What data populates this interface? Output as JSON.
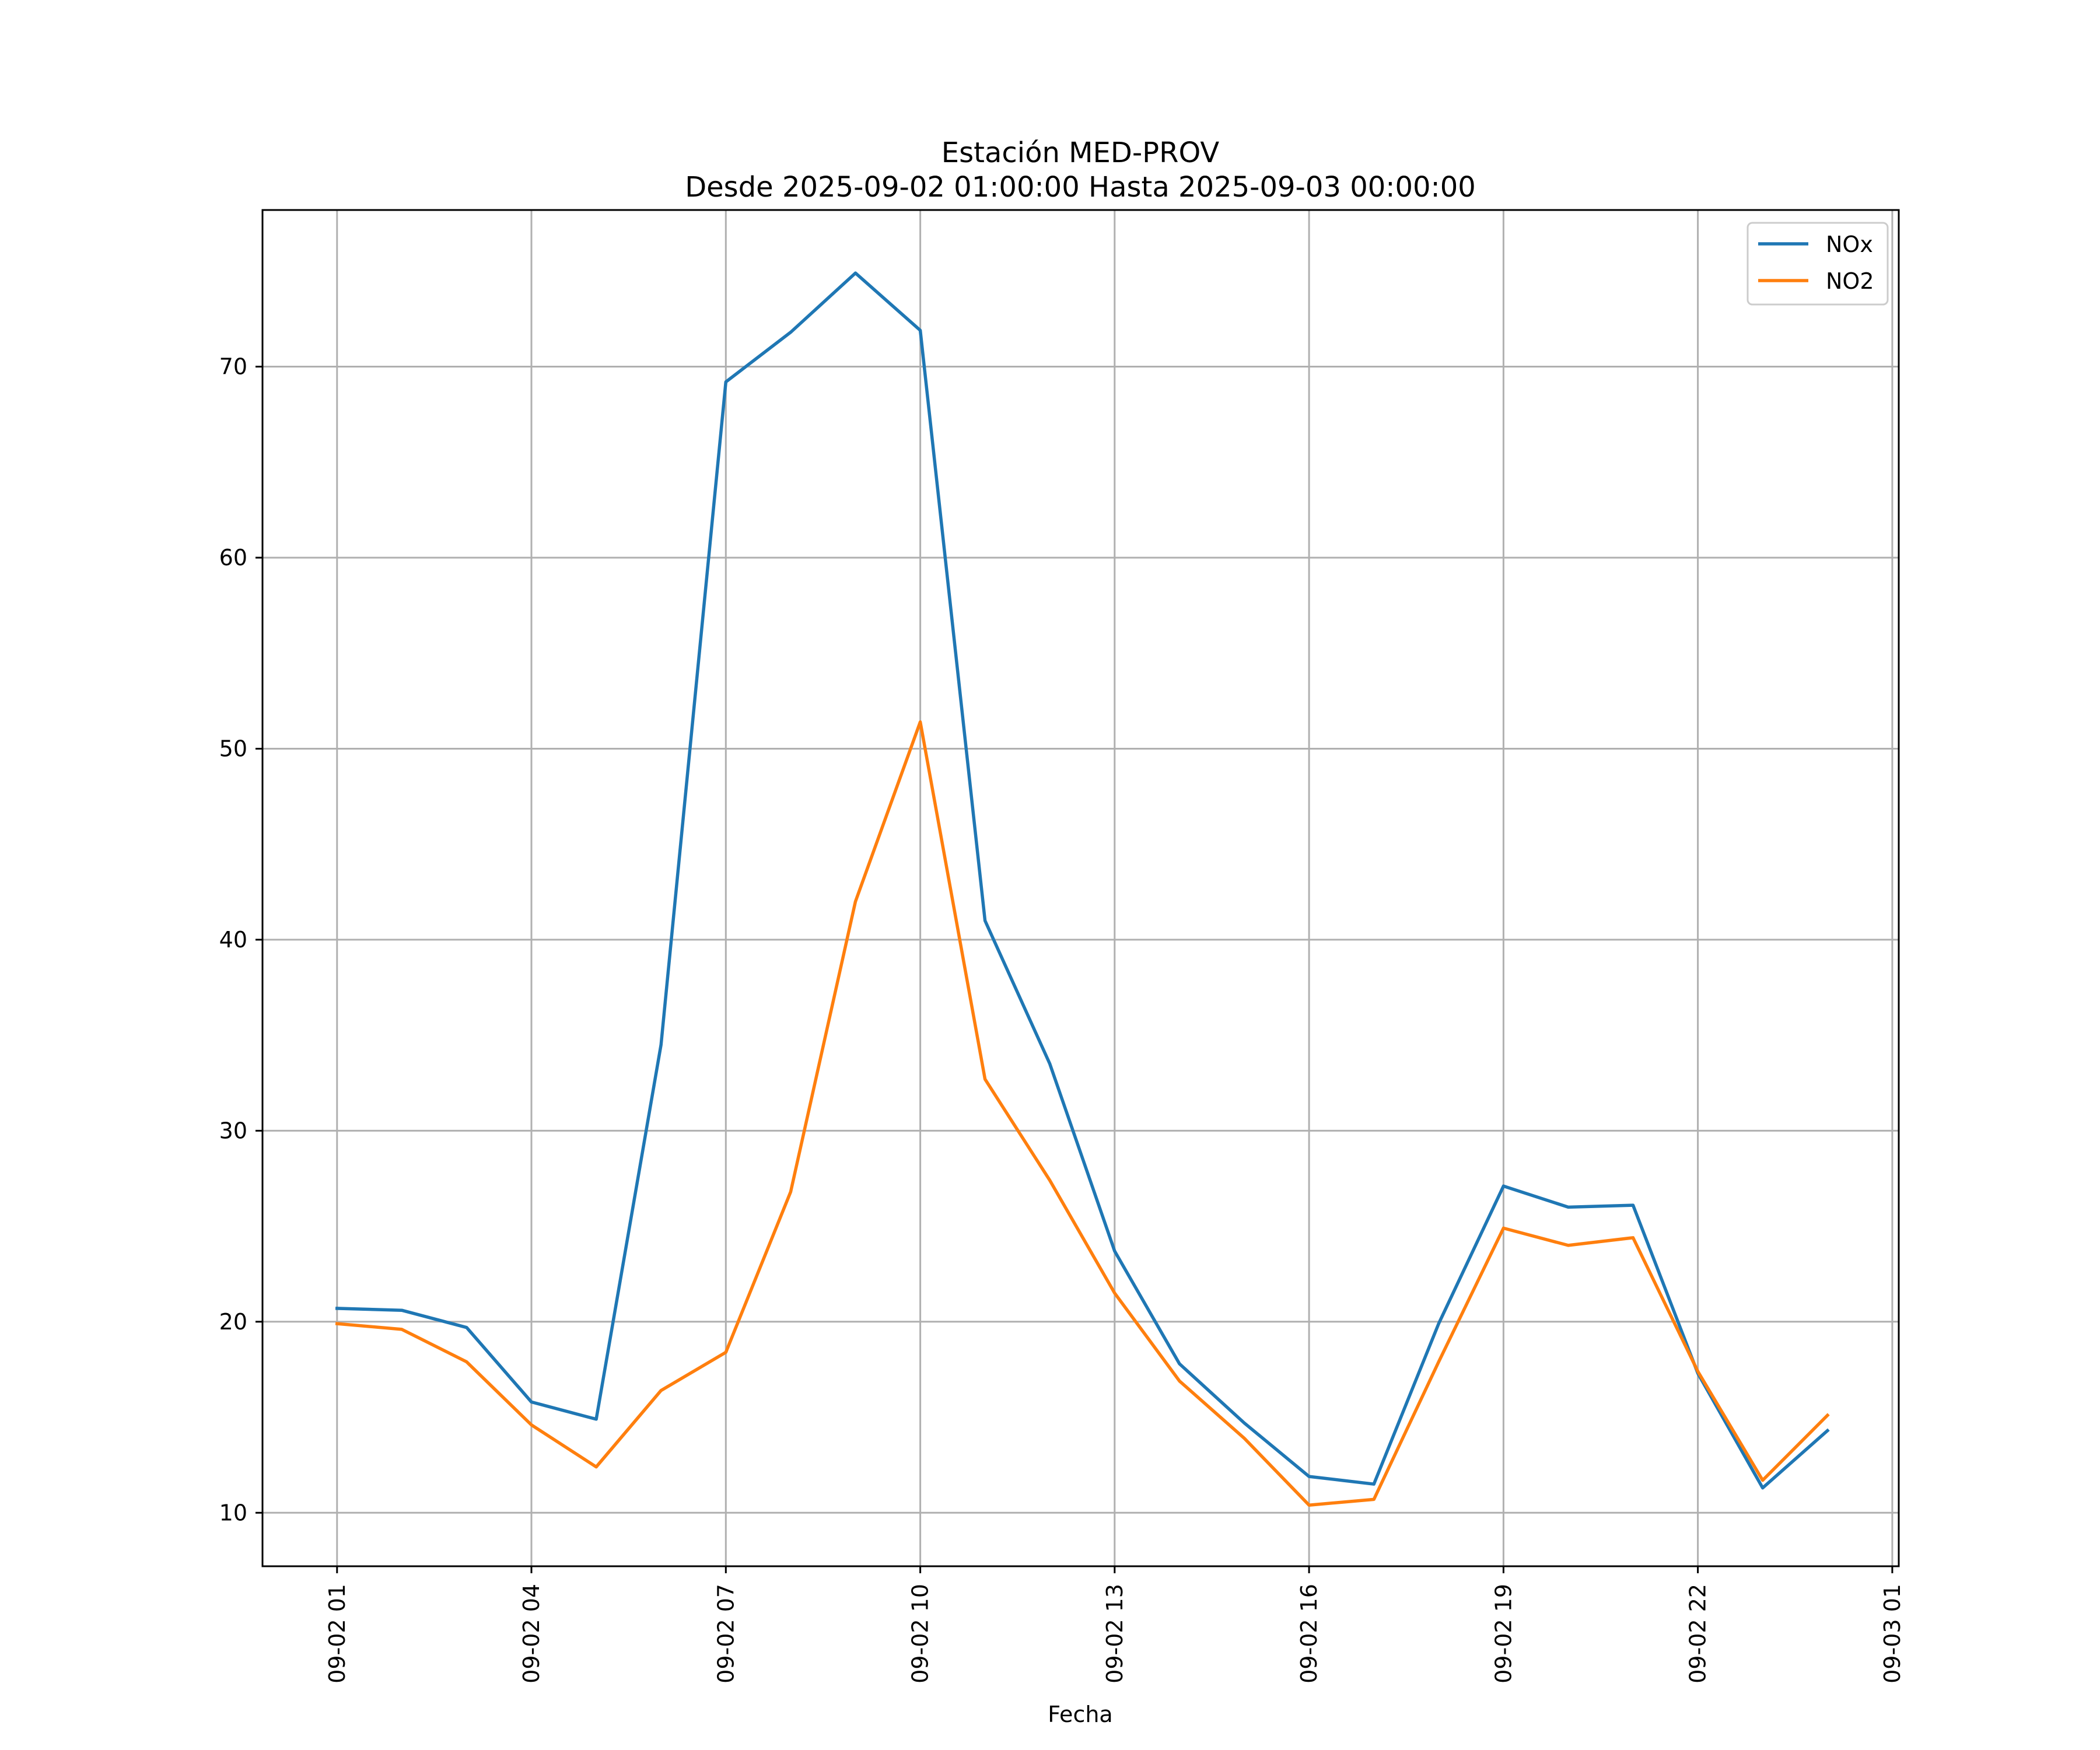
{
  "chart_data": {
    "type": "line",
    "title": "Estación MED-PROV",
    "subtitle": "Desde 2025-09-02 01:00:00 Hasta 2025-09-03 00:00:00",
    "xlabel": "Fecha",
    "ylabel": "",
    "x": [
      "09-02 01",
      "09-02 02",
      "09-02 03",
      "09-02 04",
      "09-02 05",
      "09-02 06",
      "09-02 07",
      "09-02 08",
      "09-02 09",
      "09-02 10",
      "09-02 11",
      "09-02 12",
      "09-02 13",
      "09-02 14",
      "09-02 15",
      "09-02 16",
      "09-02 17",
      "09-02 18",
      "09-02 19",
      "09-02 20",
      "09-02 21",
      "09-02 22",
      "09-02 23",
      "09-03 00"
    ],
    "x_hours": [
      1,
      2,
      3,
      4,
      5,
      6,
      7,
      8,
      9,
      10,
      11,
      12,
      13,
      14,
      15,
      16,
      17,
      18,
      19,
      20,
      21,
      22,
      23,
      24
    ],
    "xlim_hours": [
      -0.15,
      25.1
    ],
    "ylim": [
      7.2,
      78.2
    ],
    "xticks": [
      {
        "hour": 1,
        "label": "09-02 01"
      },
      {
        "hour": 4,
        "label": "09-02 04"
      },
      {
        "hour": 7,
        "label": "09-02 07"
      },
      {
        "hour": 10,
        "label": "09-02 10"
      },
      {
        "hour": 13,
        "label": "09-02 13"
      },
      {
        "hour": 16,
        "label": "09-02 16"
      },
      {
        "hour": 19,
        "label": "09-02 19"
      },
      {
        "hour": 22,
        "label": "09-02 22"
      },
      {
        "hour": 25,
        "label": "09-03 01"
      }
    ],
    "yticks": [
      10,
      20,
      30,
      40,
      50,
      60,
      70
    ],
    "grid": true,
    "legend_position": "top-right",
    "series": [
      {
        "name": "NOx",
        "color": "#1f77b4",
        "values": [
          20.7,
          20.6,
          19.7,
          15.8,
          14.9,
          34.5,
          69.2,
          71.8,
          74.9,
          71.9,
          41.0,
          33.5,
          23.7,
          17.8,
          14.7,
          11.9,
          11.5,
          19.9,
          27.1,
          26.0,
          26.1,
          17.3,
          11.3,
          14.3
        ]
      },
      {
        "name": "NO2",
        "color": "#ff7f0e",
        "values": [
          19.9,
          19.6,
          17.9,
          14.6,
          12.4,
          16.4,
          18.4,
          26.8,
          42.0,
          51.4,
          32.7,
          27.4,
          21.5,
          16.9,
          13.9,
          10.4,
          10.7,
          17.9,
          24.9,
          24.0,
          24.4,
          17.4,
          11.7,
          15.1
        ]
      }
    ]
  }
}
